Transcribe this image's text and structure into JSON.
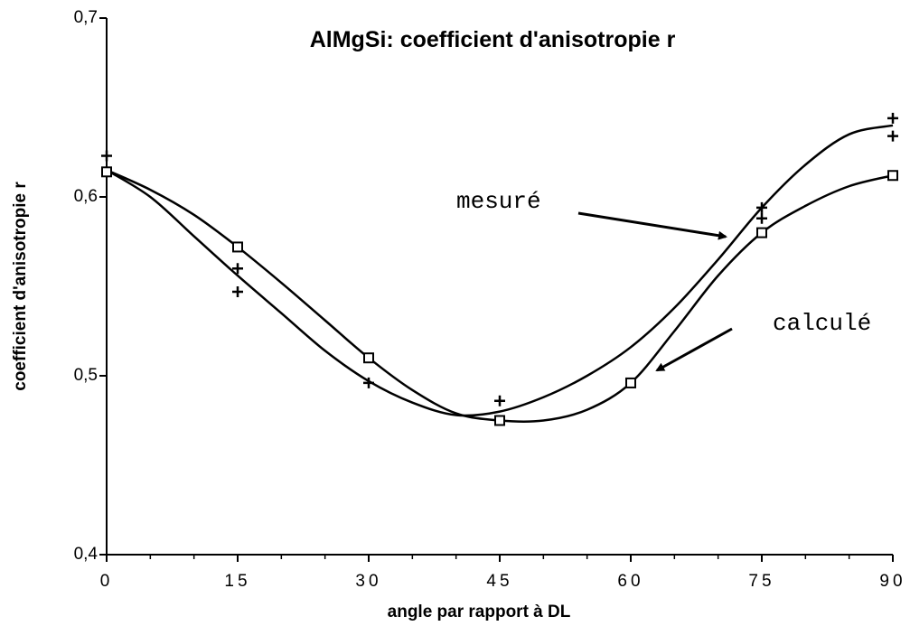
{
  "chart_data": {
    "type": "line",
    "title": "AlMgSi: coefficient d'anisotropie r",
    "xlabel": "angle par rapport à DL",
    "ylabel": "coefficient d'anisotropie r",
    "xlim": [
      0,
      90
    ],
    "ylim": [
      0.4,
      0.7
    ],
    "xticks": [
      0,
      15,
      30,
      45,
      60,
      75,
      90
    ],
    "xminor": [
      5,
      10,
      20,
      25,
      35,
      40,
      50,
      55,
      65,
      70,
      80,
      85
    ],
    "yticks": [
      {
        "value": 0.4,
        "label": "0,4"
      },
      {
        "value": 0.5,
        "label": "0,5"
      },
      {
        "value": 0.6,
        "label": "0,6"
      },
      {
        "value": 0.7,
        "label": "0,7"
      }
    ],
    "color": "#000000",
    "series": [
      {
        "name": "mesuré",
        "marker": "plus",
        "x": [
          0,
          0,
          15,
          15,
          30,
          45,
          75,
          75,
          90,
          90
        ],
        "values": [
          0.623,
          0.614,
          0.56,
          0.547,
          0.496,
          0.486,
          0.594,
          0.588,
          0.644,
          0.634
        ],
        "curve_x": [
          0,
          5,
          10,
          15,
          20,
          25,
          30,
          35,
          40,
          45,
          50,
          55,
          60,
          65,
          70,
          75,
          80,
          85,
          90
        ],
        "curve": [
          0.615,
          0.6,
          0.578,
          0.556,
          0.535,
          0.514,
          0.497,
          0.485,
          0.478,
          0.48,
          0.488,
          0.5,
          0.516,
          0.538,
          0.565,
          0.594,
          0.618,
          0.635,
          0.64
        ]
      },
      {
        "name": "calculé",
        "marker": "square",
        "x": [
          0,
          15,
          30,
          45,
          60,
          75,
          90
        ],
        "values": [
          0.614,
          0.572,
          0.51,
          0.475,
          0.496,
          0.58,
          0.612
        ],
        "curve_x": [
          0,
          5,
          10,
          15,
          20,
          25,
          30,
          35,
          40,
          45,
          50,
          55,
          60,
          65,
          70,
          75,
          80,
          85,
          90
        ],
        "curve": [
          0.615,
          0.604,
          0.59,
          0.572,
          0.552,
          0.531,
          0.51,
          0.492,
          0.479,
          0.475,
          0.475,
          0.481,
          0.496,
          0.525,
          0.556,
          0.58,
          0.595,
          0.606,
          0.612
        ]
      }
    ]
  }
}
